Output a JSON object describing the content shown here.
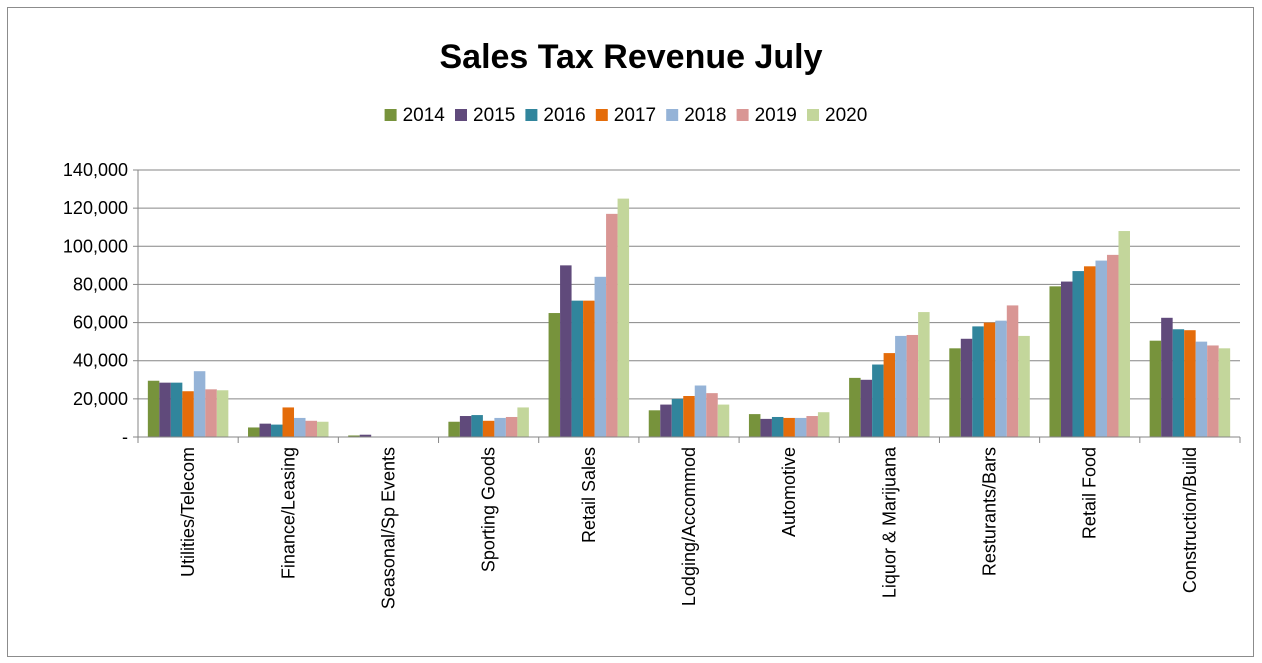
{
  "colors": {
    "series": [
      "#77933c",
      "#604a7b",
      "#31859c",
      "#e46c0a",
      "#95b3d7",
      "#d99694",
      "#c3d69b"
    ],
    "grid": "#868686",
    "axis": "#868686"
  },
  "chart_data": {
    "type": "bar",
    "title": "Sales Tax Revenue July",
    "legend_position": "top",
    "grid": true,
    "ylim": [
      0,
      140000
    ],
    "y_ticks": [
      0,
      20000,
      40000,
      60000,
      80000,
      100000,
      120000,
      140000
    ],
    "y_tick_labels": [
      "-",
      "20,000",
      "40,000",
      "60,000",
      "80,000",
      "100,000",
      "120,000",
      "140,000"
    ],
    "categories": [
      "Utilities/Telecom",
      "Finance/Leasing",
      "Seasonal/Sp Events",
      "Sporting Goods",
      "Retail Sales",
      "Lodging/Accommod",
      "Automotive",
      "Liquor & Marijuana",
      "Resturants/Bars",
      "Retail Food",
      "Construction/Build"
    ],
    "series": [
      {
        "name": "2014",
        "values": [
          29500,
          5000,
          800,
          8000,
          65000,
          14000,
          12000,
          31000,
          46500,
          79000,
          50500
        ]
      },
      {
        "name": "2015",
        "values": [
          28500,
          7000,
          1200,
          11000,
          90000,
          17000,
          9500,
          30000,
          51500,
          81500,
          62500
        ]
      },
      {
        "name": "2016",
        "values": [
          28500,
          6500,
          0,
          11500,
          71500,
          20000,
          10500,
          38000,
          58000,
          87000,
          56500
        ]
      },
      {
        "name": "2017",
        "values": [
          24000,
          15500,
          0,
          8500,
          71500,
          21500,
          10000,
          44000,
          60000,
          89500,
          56000
        ]
      },
      {
        "name": "2018",
        "values": [
          34500,
          10000,
          0,
          10000,
          84000,
          27000,
          10000,
          53000,
          61000,
          92500,
          50000
        ]
      },
      {
        "name": "2019",
        "values": [
          25000,
          8500,
          0,
          10500,
          117000,
          23000,
          11000,
          53500,
          69000,
          95500,
          48000
        ]
      },
      {
        "name": "2020",
        "values": [
          24500,
          8000,
          0,
          15500,
          125000,
          17000,
          13000,
          65500,
          53000,
          108000,
          46500
        ]
      }
    ]
  }
}
